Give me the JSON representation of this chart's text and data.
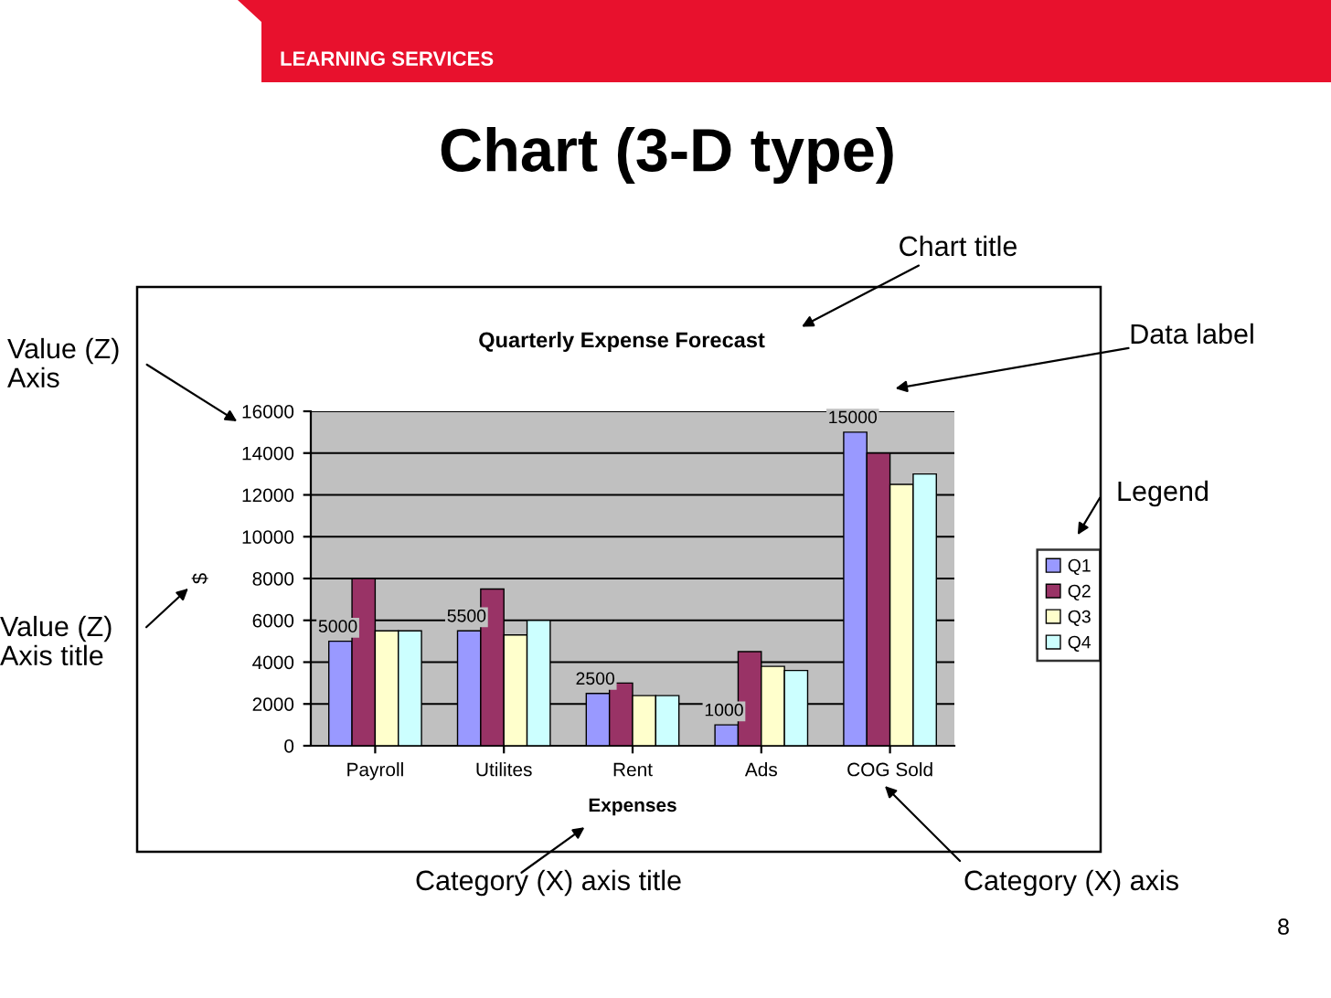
{
  "chart_data": {
    "type": "bar",
    "title": "Chart (3-D type)",
    "subtitle": "Quarterly Expense Forecast",
    "xlabel": "Expenses",
    "ylabel": "$",
    "categories": [
      "Payroll",
      "Utilites",
      "Rent",
      "Ads",
      "COG Sold"
    ],
    "series": [
      {
        "name": "Q1",
        "color": "#9999ff",
        "values": [
          5000,
          5500,
          2500,
          1000,
          15000
        ],
        "value_labels": [
          "5000",
          "5500",
          "2500",
          "1000",
          "15000"
        ]
      },
      {
        "name": "Q2",
        "color": "#993366",
        "values": [
          8000,
          7500,
          3000,
          4500,
          14000
        ]
      },
      {
        "name": "Q3",
        "color": "#ffffcc",
        "values": [
          5500,
          5300,
          2400,
          3800,
          12500
        ]
      },
      {
        "name": "Q4",
        "color": "#ccffff",
        "values": [
          5500,
          6000,
          2400,
          3600,
          13000
        ]
      }
    ],
    "ylim": [
      0,
      16000
    ],
    "yticks": [
      0,
      2000,
      4000,
      6000,
      8000,
      10000,
      12000,
      14000,
      16000
    ],
    "grid": "y",
    "legend": "right",
    "annotations": [
      "LEARNING SERVICES",
      "Chart title",
      "Data label",
      "Legend",
      "Value (Z)\nAxis",
      "Value (Z)\nAxis title",
      "Category (X) axis title",
      "Category (X) axis",
      "8"
    ]
  }
}
